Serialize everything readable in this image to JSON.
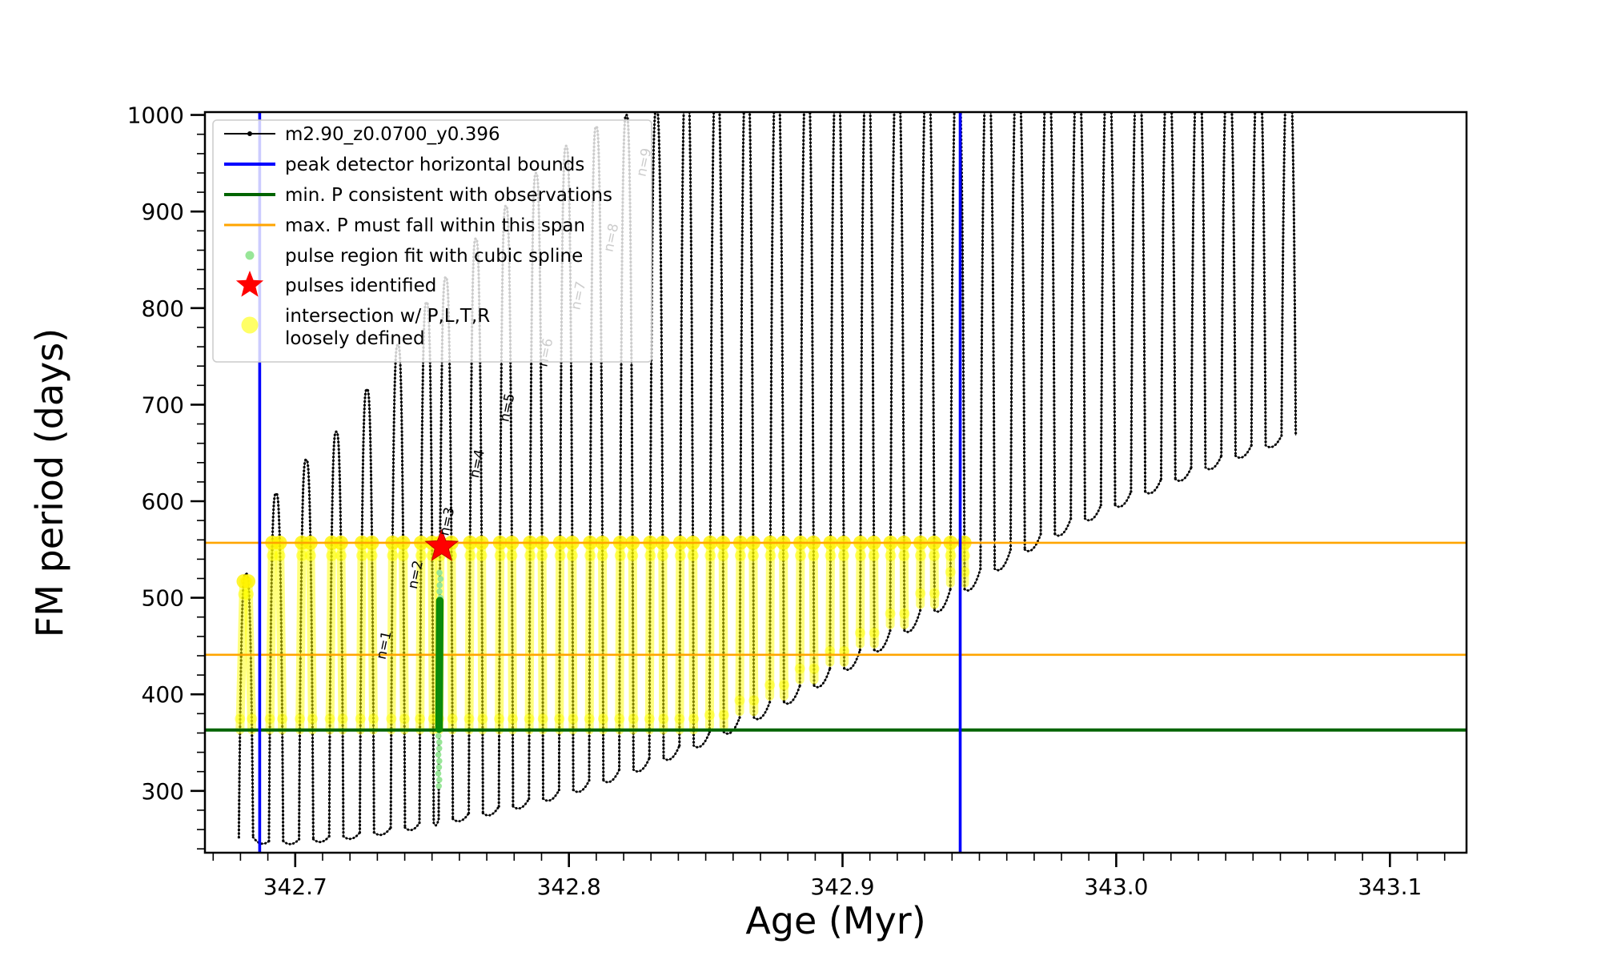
{
  "chart_data": {
    "type": "line",
    "title": "",
    "xlabel": "Age (Myr)",
    "ylabel": "FM period (days)",
    "xlim": [
      342.667,
      343.128
    ],
    "ylim": [
      236,
      1003
    ],
    "x_major_ticks": [
      342.7,
      342.8,
      342.9,
      343.0,
      343.1
    ],
    "x_major_labels": [
      "342.7",
      "342.8",
      "342.9",
      "343.0",
      "343.1"
    ],
    "y_major_ticks": [
      300,
      400,
      500,
      600,
      700,
      800,
      900,
      1000
    ],
    "y_major_labels": [
      "300",
      "400",
      "500",
      "600",
      "700",
      "800",
      "900",
      "1000"
    ],
    "x_minor_step": 0.01,
    "y_minor_step": 20,
    "grid": false,
    "legend_position": "upper-left",
    "series_label": "m2.90_z0.0700_y0.396",
    "spikes_format": [
      "age_center_Myr",
      "peak_period_days",
      "base_period_days"
    ],
    "spikes": [
      [
        342.682,
        525,
        252
      ],
      [
        342.693,
        608,
        248
      ],
      [
        342.704,
        643,
        250
      ],
      [
        342.715,
        672,
        253
      ],
      [
        342.7262,
        716,
        257
      ],
      [
        342.7375,
        762,
        262
      ],
      [
        342.748,
        806,
        267
      ],
      [
        342.755,
        832,
        271
      ],
      [
        342.766,
        872,
        277
      ],
      [
        342.777,
        906,
        284
      ],
      [
        342.788,
        940,
        292
      ],
      [
        342.799,
        968,
        301
      ],
      [
        342.81,
        988,
        311
      ],
      [
        342.821,
        1000,
        322
      ],
      [
        342.832,
        1006,
        334
      ],
      [
        342.843,
        1050,
        347
      ],
      [
        342.854,
        1050,
        361
      ],
      [
        342.865,
        1050,
        376
      ],
      [
        342.876,
        1050,
        392
      ],
      [
        342.887,
        1050,
        409
      ],
      [
        342.898,
        1050,
        427
      ],
      [
        342.909,
        1050,
        446
      ],
      [
        342.92,
        1050,
        466
      ],
      [
        342.931,
        1050,
        487
      ],
      [
        342.942,
        1050,
        509
      ],
      [
        342.953,
        1050,
        530
      ],
      [
        342.964,
        1050,
        550
      ],
      [
        342.975,
        1050,
        566
      ],
      [
        342.986,
        1050,
        582
      ],
      [
        342.997,
        1050,
        596
      ],
      [
        343.008,
        1050,
        610
      ],
      [
        343.019,
        1050,
        623
      ],
      [
        343.03,
        1050,
        635
      ],
      [
        343.041,
        1050,
        647
      ],
      [
        343.052,
        1050,
        658
      ],
      [
        343.063,
        1050,
        668
      ]
    ],
    "overlays": {
      "blue_vlines": {
        "label": "peak detector horizontal bounds",
        "x": [
          342.687,
          342.943
        ],
        "color": "#0000FF"
      },
      "green_hline": {
        "label": "min. P consistent with observations",
        "y": 363,
        "color": "#006400"
      },
      "orange_hlines": {
        "label": "max. P must fall within this span",
        "y": [
          441,
          557
        ],
        "color": "#FFA500"
      },
      "yellow_band": {
        "label": "intersection w/ P,L,T,R loosely defined",
        "y_range": [
          363,
          557
        ],
        "x_range": [
          342.676,
          342.948
        ],
        "color": "rgba(255,255,0,0.5)"
      },
      "pulse_fit": {
        "label": "pulse region fit with cubic spline",
        "x": 342.755,
        "light_range": [
          305,
          530
        ],
        "dense_range": [
          364,
          497
        ],
        "color_light": "#98E698",
        "color_dark": "#0A8A0A"
      },
      "pulse_star": {
        "label": "pulses identified",
        "x": 342.7535,
        "y": 553,
        "color": "#FF0000"
      }
    },
    "pulse_labels": [
      {
        "text": "n=1",
        "x": 342.734,
        "y": 450
      },
      {
        "text": "n=2",
        "x": 342.7455,
        "y": 523
      },
      {
        "text": "n=3",
        "x": 342.757,
        "y": 578
      },
      {
        "text": "n=4",
        "x": 342.768,
        "y": 638
      },
      {
        "text": "n=5",
        "x": 342.779,
        "y": 696
      },
      {
        "text": "n=6",
        "x": 342.793,
        "y": 753
      },
      {
        "text": "n=7",
        "x": 342.805,
        "y": 812
      },
      {
        "text": "n=8",
        "x": 342.817,
        "y": 872
      },
      {
        "text": "n=9",
        "x": 342.829,
        "y": 950
      }
    ],
    "legend": {
      "entries": [
        {
          "marker": "line-dot",
          "color": "#000000",
          "label": "m2.90_z0.0700_y0.396"
        },
        {
          "marker": "line",
          "color": "#0000FF",
          "lw": 4,
          "label": "peak detector horizontal bounds"
        },
        {
          "marker": "line",
          "color": "#006400",
          "lw": 4,
          "label": "min. P consistent with observations"
        },
        {
          "marker": "line",
          "color": "#FFA500",
          "lw": 3,
          "label": "max. P must fall within this span"
        },
        {
          "marker": "dot",
          "color": "#98E698",
          "label": "pulse region fit with cubic spline"
        },
        {
          "marker": "star",
          "color": "#FF0000",
          "label": "pulses identified"
        },
        {
          "marker": "dot-large",
          "color": "rgba(255,255,0,0.6)",
          "label": "intersection w/ P,L,T,R\nloosely defined"
        }
      ]
    }
  }
}
